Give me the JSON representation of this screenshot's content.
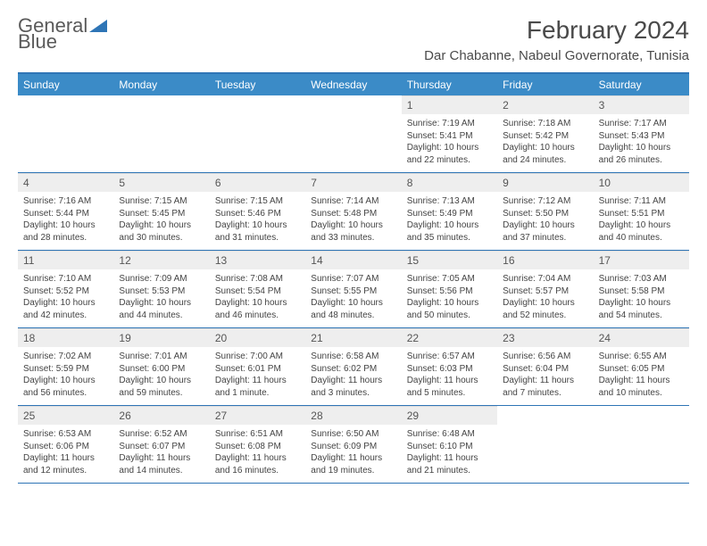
{
  "brand": {
    "name1": "General",
    "name2": "Blue"
  },
  "title": "February 2024",
  "location": "Dar Chabanne, Nabeul Governorate, Tunisia",
  "colors": {
    "header_bg": "#3b8bc7",
    "header_border": "#2e75b6",
    "daynum_bg": "#eeeeee",
    "text": "#333333"
  },
  "dayNames": [
    "Sunday",
    "Monday",
    "Tuesday",
    "Wednesday",
    "Thursday",
    "Friday",
    "Saturday"
  ],
  "weeks": [
    [
      {
        "empty": true
      },
      {
        "empty": true
      },
      {
        "empty": true
      },
      {
        "empty": true
      },
      {
        "n": "1",
        "sunrise": "7:19 AM",
        "sunset": "5:41 PM",
        "daylight": "10 hours and 22 minutes."
      },
      {
        "n": "2",
        "sunrise": "7:18 AM",
        "sunset": "5:42 PM",
        "daylight": "10 hours and 24 minutes."
      },
      {
        "n": "3",
        "sunrise": "7:17 AM",
        "sunset": "5:43 PM",
        "daylight": "10 hours and 26 minutes."
      }
    ],
    [
      {
        "n": "4",
        "sunrise": "7:16 AM",
        "sunset": "5:44 PM",
        "daylight": "10 hours and 28 minutes."
      },
      {
        "n": "5",
        "sunrise": "7:15 AM",
        "sunset": "5:45 PM",
        "daylight": "10 hours and 30 minutes."
      },
      {
        "n": "6",
        "sunrise": "7:15 AM",
        "sunset": "5:46 PM",
        "daylight": "10 hours and 31 minutes."
      },
      {
        "n": "7",
        "sunrise": "7:14 AM",
        "sunset": "5:48 PM",
        "daylight": "10 hours and 33 minutes."
      },
      {
        "n": "8",
        "sunrise": "7:13 AM",
        "sunset": "5:49 PM",
        "daylight": "10 hours and 35 minutes."
      },
      {
        "n": "9",
        "sunrise": "7:12 AM",
        "sunset": "5:50 PM",
        "daylight": "10 hours and 37 minutes."
      },
      {
        "n": "10",
        "sunrise": "7:11 AM",
        "sunset": "5:51 PM",
        "daylight": "10 hours and 40 minutes."
      }
    ],
    [
      {
        "n": "11",
        "sunrise": "7:10 AM",
        "sunset": "5:52 PM",
        "daylight": "10 hours and 42 minutes."
      },
      {
        "n": "12",
        "sunrise": "7:09 AM",
        "sunset": "5:53 PM",
        "daylight": "10 hours and 44 minutes."
      },
      {
        "n": "13",
        "sunrise": "7:08 AM",
        "sunset": "5:54 PM",
        "daylight": "10 hours and 46 minutes."
      },
      {
        "n": "14",
        "sunrise": "7:07 AM",
        "sunset": "5:55 PM",
        "daylight": "10 hours and 48 minutes."
      },
      {
        "n": "15",
        "sunrise": "7:05 AM",
        "sunset": "5:56 PM",
        "daylight": "10 hours and 50 minutes."
      },
      {
        "n": "16",
        "sunrise": "7:04 AM",
        "sunset": "5:57 PM",
        "daylight": "10 hours and 52 minutes."
      },
      {
        "n": "17",
        "sunrise": "7:03 AM",
        "sunset": "5:58 PM",
        "daylight": "10 hours and 54 minutes."
      }
    ],
    [
      {
        "n": "18",
        "sunrise": "7:02 AM",
        "sunset": "5:59 PM",
        "daylight": "10 hours and 56 minutes."
      },
      {
        "n": "19",
        "sunrise": "7:01 AM",
        "sunset": "6:00 PM",
        "daylight": "10 hours and 59 minutes."
      },
      {
        "n": "20",
        "sunrise": "7:00 AM",
        "sunset": "6:01 PM",
        "daylight": "11 hours and 1 minute."
      },
      {
        "n": "21",
        "sunrise": "6:58 AM",
        "sunset": "6:02 PM",
        "daylight": "11 hours and 3 minutes."
      },
      {
        "n": "22",
        "sunrise": "6:57 AM",
        "sunset": "6:03 PM",
        "daylight": "11 hours and 5 minutes."
      },
      {
        "n": "23",
        "sunrise": "6:56 AM",
        "sunset": "6:04 PM",
        "daylight": "11 hours and 7 minutes."
      },
      {
        "n": "24",
        "sunrise": "6:55 AM",
        "sunset": "6:05 PM",
        "daylight": "11 hours and 10 minutes."
      }
    ],
    [
      {
        "n": "25",
        "sunrise": "6:53 AM",
        "sunset": "6:06 PM",
        "daylight": "11 hours and 12 minutes."
      },
      {
        "n": "26",
        "sunrise": "6:52 AM",
        "sunset": "6:07 PM",
        "daylight": "11 hours and 14 minutes."
      },
      {
        "n": "27",
        "sunrise": "6:51 AM",
        "sunset": "6:08 PM",
        "daylight": "11 hours and 16 minutes."
      },
      {
        "n": "28",
        "sunrise": "6:50 AM",
        "sunset": "6:09 PM",
        "daylight": "11 hours and 19 minutes."
      },
      {
        "n": "29",
        "sunrise": "6:48 AM",
        "sunset": "6:10 PM",
        "daylight": "11 hours and 21 minutes."
      },
      {
        "empty": true
      },
      {
        "empty": true
      }
    ]
  ],
  "labels": {
    "sunrise": "Sunrise: ",
    "sunset": "Sunset: ",
    "daylight": "Daylight: "
  }
}
